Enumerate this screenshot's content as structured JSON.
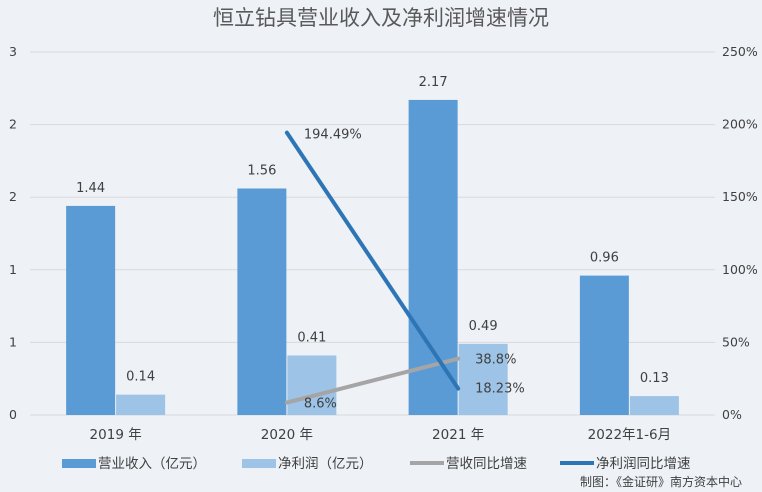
{
  "chart_data": {
    "type": "bar",
    "title": "恒立钻具营业收入及净利润增速情况",
    "categories": [
      "2019 年",
      "2020 年",
      "2021 年",
      "2022年1-6月"
    ],
    "series": [
      {
        "name": "营业收入（亿元）",
        "kind": "bar",
        "axis": "left",
        "values": [
          1.44,
          1.56,
          2.17,
          0.96
        ],
        "labels": [
          "1.44",
          "1.56",
          "2.17",
          "0.96"
        ],
        "color": "#5b9bd5"
      },
      {
        "name": "净利润（亿元）",
        "kind": "bar",
        "axis": "left",
        "values": [
          0.14,
          0.41,
          0.49,
          0.13
        ],
        "labels": [
          "0.14",
          "0.41",
          "0.49",
          "0.13"
        ],
        "color": "#9dc3e6"
      },
      {
        "name": "营收同比增速",
        "kind": "line",
        "axis": "right",
        "values": [
          null,
          8.6,
          38.8,
          null
        ],
        "labels": [
          "",
          "8.6%",
          "38.8%",
          ""
        ],
        "color": "#a5a5a5"
      },
      {
        "name": "净利润同比增速",
        "kind": "line",
        "axis": "right",
        "values": [
          null,
          194.49,
          18.23,
          null
        ],
        "labels": [
          "",
          "194.49%",
          "18.23%",
          ""
        ],
        "color": "#2e75b6"
      }
    ],
    "y_left": {
      "ylim": [
        0,
        2.5
      ],
      "tick_values": [
        0,
        0.5,
        1,
        1.5,
        2,
        2.5
      ],
      "tick_labels": [
        "0",
        "1",
        "1",
        "2",
        "2",
        "3"
      ]
    },
    "y_right": {
      "ylim": [
        0,
        250
      ],
      "tick_values": [
        0,
        50,
        100,
        150,
        200,
        250
      ],
      "tick_labels": [
        "0%",
        "50%",
        "100%",
        "150%",
        "200%",
        "250%"
      ]
    },
    "grid": true,
    "legend_position": "bottom"
  },
  "footer": "制图：《金证研》南方资本中心"
}
